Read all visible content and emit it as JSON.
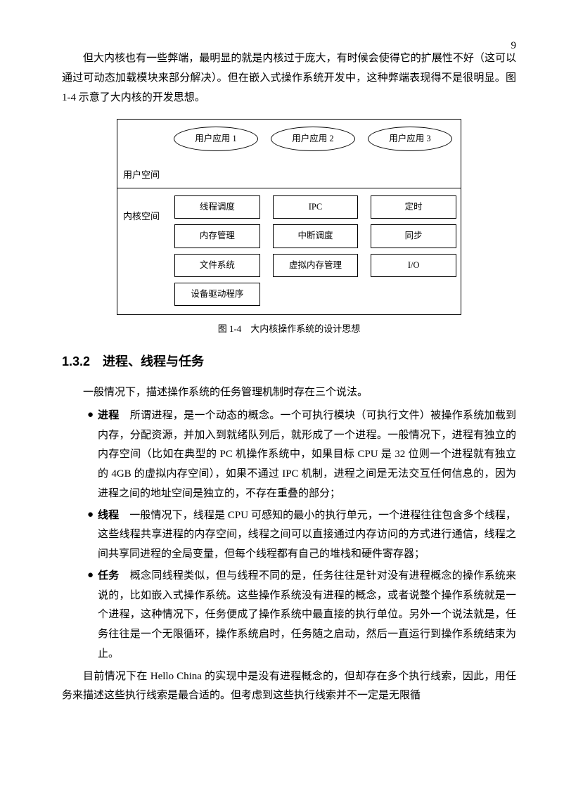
{
  "page_number": "9",
  "intro_paragraph": "但大内核也有一些弊端，最明显的就是内核过于庞大，有时候会使得它的扩展性不好（这可以通过可动态加载模块来部分解决）。但在嵌入式操作系统开发中，这种弊端表现得不是很明显。图 1-4 示意了大内核的开发思想。",
  "diagram": {
    "user_space_label": "用户空间",
    "apps": [
      "用户应用 1",
      "用户应用 2",
      "用户应用 3"
    ],
    "kernel_space_label": "内核空间",
    "kernel_boxes": [
      [
        "线程调度",
        "IPC",
        "定时"
      ],
      [
        "内存管理",
        "中断调度",
        "同步"
      ],
      [
        "文件系统",
        "虚拟内存管理",
        "I/O"
      ],
      [
        "设备驱动程序",
        "",
        ""
      ]
    ],
    "caption": "图 1-4　大内核操作系统的设计思想",
    "border_color": "#000000",
    "bg_color": "#ffffff"
  },
  "section_heading": "1.3.2　进程、线程与任务",
  "lead_sentence": "一般情况下，描述操作系统的任务管理机制时存在三个说法。",
  "bullets": [
    {
      "term": "进程",
      "text": "　所谓进程，是一个动态的概念。一个可执行模块（可执行文件）被操作系统加载到内存，分配资源，并加入到就绪队列后，就形成了一个进程。一般情况下，进程有独立的内存空间（比如在典型的 PC 机操作系统中，如果目标 CPU 是 32 位则一个进程就有独立的 4GB 的虚拟内存空间），如果不通过 IPC 机制，进程之间是无法交互任何信息的，因为进程之间的地址空间是独立的，不存在重叠的部分；"
    },
    {
      "term": "线程",
      "text": "　一般情况下，线程是 CPU 可感知的最小的执行单元，一个进程往往包含多个线程，这些线程共享进程的内存空间，线程之间可以直接通过内存访问的方式进行通信，线程之间共享同进程的全局变量，但每个线程都有自己的堆栈和硬件寄存器；"
    },
    {
      "term": "任务",
      "text": "　概念同线程类似，但与线程不同的是，任务往往是针对没有进程概念的操作系统来说的，比如嵌入式操作系统。这些操作系统没有进程的概念，或者说整个操作系统就是一个进程，这种情况下，任务便成了操作系统中最直接的执行单位。另外一个说法就是，任务往往是一个无限循环，操作系统启时，任务随之启动，然后一直运行到操作系统结束为止。"
    }
  ],
  "closing_paragraph": "目前情况下在 Hello China 的实现中是没有进程概念的，但却存在多个执行线索，因此，用任务来描述这些执行线索是最合适的。但考虑到这些执行线索并不一定是无限循"
}
